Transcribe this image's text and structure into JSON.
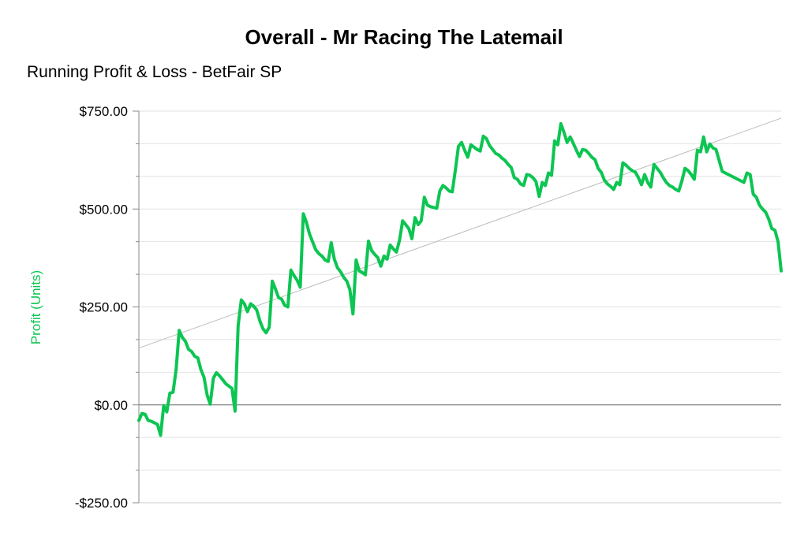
{
  "chart_data": {
    "type": "line",
    "title": "Overall - Mr Racing The Latemail",
    "subtitle": "Running Profit & Loss - BetFair SP",
    "ylabel": "Profit (Units)",
    "xlabel": "",
    "ylim": [
      -250,
      750
    ],
    "yticks": [
      -250,
      0,
      250,
      500,
      750
    ],
    "ytick_labels": [
      "-$250.00",
      "$0.00",
      "$250.00",
      "$500.00",
      "$750.00"
    ],
    "grid": true,
    "trendline": true,
    "series": [
      {
        "color": "#0cc552",
        "values": [
          -40,
          -22,
          -24,
          -40,
          -42,
          -46,
          -50,
          -78,
          -2,
          -18,
          30,
          32,
          90,
          190,
          172,
          162,
          142,
          136,
          124,
          120,
          90,
          70,
          25,
          2,
          68,
          82,
          74,
          64,
          54,
          48,
          42,
          -16,
          202,
          268,
          258,
          238,
          258,
          252,
          242,
          214,
          194,
          184,
          198,
          316,
          296,
          274,
          270,
          254,
          250,
          344,
          330,
          318,
          300,
          488,
          466,
          436,
          416,
          396,
          386,
          380,
          370,
          366,
          414,
          372,
          350,
          340,
          326,
          316,
          294,
          232,
          370,
          342,
          338,
          332,
          418,
          394,
          384,
          376,
          354,
          380,
          372,
          408,
          398,
          390,
          420,
          470,
          460,
          450,
          424,
          478,
          460,
          470,
          530,
          510,
          506,
          504,
          502,
          546,
          560,
          554,
          546,
          544,
          600,
          660,
          670,
          650,
          632,
          664,
          658,
          652,
          648,
          686,
          680,
          662,
          652,
          642,
          638,
          630,
          624,
          614,
          606,
          580,
          576,
          564,
          560,
          588,
          586,
          580,
          570,
          532,
          568,
          560,
          592,
          586,
          674,
          664,
          718,
          696,
          670,
          684,
          668,
          650,
          634,
          652,
          650,
          642,
          632,
          626,
          604,
          594,
          574,
          564,
          558,
          550,
          568,
          562,
          618,
          612,
          604,
          598,
          594,
          580,
          562,
          588,
          568,
          556,
          614,
          604,
          594,
          580,
          568,
          560,
          556,
          550,
          546,
          572,
          604,
          598,
          588,
          576,
          650,
          646,
          684,
          646,
          666,
          656,
          652,
          624,
          596,
          592,
          588,
          584,
          580,
          576,
          572,
          568,
          592,
          588,
          538,
          530,
          510,
          500,
          492,
          474,
          450,
          446,
          416,
          342
        ]
      }
    ],
    "trend": {
      "start": 145,
      "end": 732
    }
  }
}
